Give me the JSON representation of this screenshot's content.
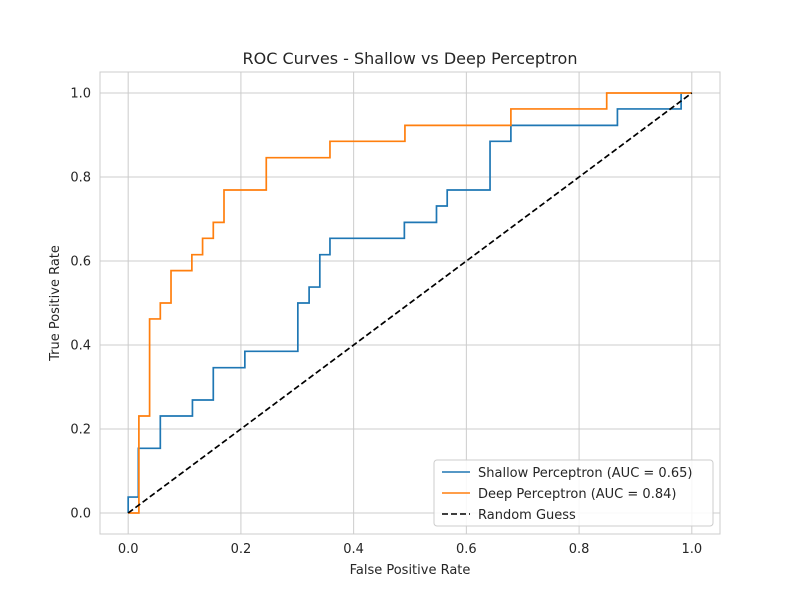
{
  "chart_data": {
    "type": "line",
    "title": "ROC Curves - Shallow vs Deep Perceptron",
    "xlabel": "False Positive Rate",
    "ylabel": "True Positive Rate",
    "xlim": [
      -0.05,
      1.05
    ],
    "ylim": [
      -0.05,
      1.05
    ],
    "xticks": [
      "0.0",
      "0.2",
      "0.4",
      "0.6",
      "0.8",
      "1.0"
    ],
    "yticks": [
      "0.0",
      "0.2",
      "0.4",
      "0.6",
      "0.8",
      "1.0"
    ],
    "grid": true,
    "legend_position": "lower-right",
    "series": [
      {
        "name": "Shallow Perceptron (AUC = 0.65)",
        "color": "#1f77b4",
        "dash": "solid",
        "x": [
          0.0,
          0.0,
          0.018,
          0.018,
          0.057,
          0.057,
          0.114,
          0.114,
          0.151,
          0.151,
          0.207,
          0.207,
          0.301,
          0.301,
          0.321,
          0.321,
          0.34,
          0.34,
          0.358,
          0.358,
          0.49,
          0.49,
          0.547,
          0.547,
          0.566,
          0.566,
          0.642,
          0.642,
          0.679,
          0.679,
          0.868,
          0.868,
          0.981,
          0.981,
          1.0
        ],
        "y": [
          0.0,
          0.038,
          0.038,
          0.154,
          0.154,
          0.231,
          0.231,
          0.269,
          0.269,
          0.346,
          0.346,
          0.385,
          0.385,
          0.5,
          0.5,
          0.538,
          0.538,
          0.615,
          0.615,
          0.654,
          0.654,
          0.692,
          0.692,
          0.731,
          0.731,
          0.769,
          0.769,
          0.885,
          0.885,
          0.923,
          0.923,
          0.962,
          0.962,
          1.0,
          1.0
        ]
      },
      {
        "name": "Deep Perceptron (AUC = 0.84)",
        "color": "#ff7f0e",
        "dash": "solid",
        "x": [
          0.0,
          0.019,
          0.019,
          0.038,
          0.038,
          0.057,
          0.057,
          0.076,
          0.076,
          0.113,
          0.113,
          0.132,
          0.132,
          0.151,
          0.151,
          0.17,
          0.17,
          0.245,
          0.245,
          0.358,
          0.358,
          0.491,
          0.491,
          0.679,
          0.679,
          0.849,
          0.849,
          1.0
        ],
        "y": [
          0.0,
          0.0,
          0.231,
          0.231,
          0.462,
          0.462,
          0.5,
          0.5,
          0.577,
          0.577,
          0.615,
          0.615,
          0.654,
          0.654,
          0.692,
          0.692,
          0.769,
          0.769,
          0.846,
          0.846,
          0.885,
          0.885,
          0.923,
          0.923,
          0.962,
          0.962,
          1.0,
          1.0
        ]
      },
      {
        "name": "Random Guess",
        "color": "#000000",
        "dash": "dashed",
        "x": [
          0.0,
          1.0
        ],
        "y": [
          0.0,
          1.0
        ]
      }
    ]
  }
}
